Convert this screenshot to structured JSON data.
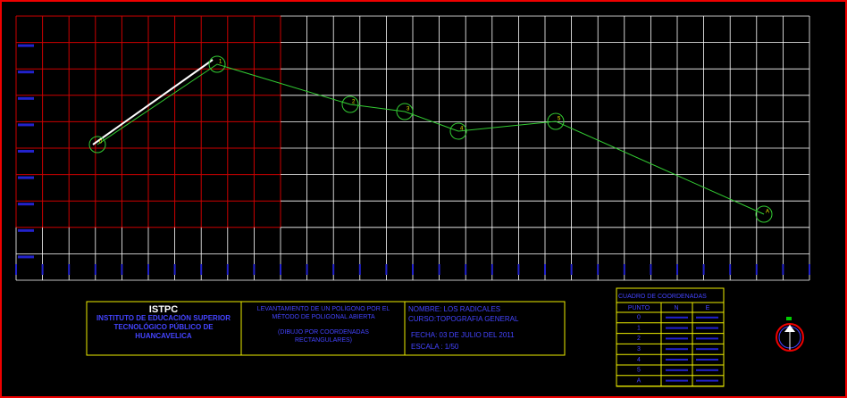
{
  "drawing": {
    "points": [
      "0",
      "1",
      "2",
      "3",
      "4",
      "5",
      "A"
    ],
    "title_block": {
      "logo": "ISTPC",
      "institution": "INSTITUTO DE EDUCACIÓN SUPERIOR TECNOLÓGICO PÚBLICO DE HUANCAVELICA",
      "survey": "LEVANTAMIENTO DE UN POLÍGONO POR EL MÉTODO DE POLIGONAL ABIERTA",
      "method": "(DIBUJO POR COORDENADAS RECTANGULARES)",
      "name": "NOMBRE: LOS RADICALES",
      "course": "CURSO:TOPOGRAFIA GENERAL",
      "date": "FECHA: 03 DE JULIO DEL 2011",
      "scale": "ESCALA : 1/50"
    },
    "table": {
      "title": "CUADRO DE COORDENADAS",
      "headers": [
        "PUNTO",
        "N",
        "E"
      ]
    }
  }
}
